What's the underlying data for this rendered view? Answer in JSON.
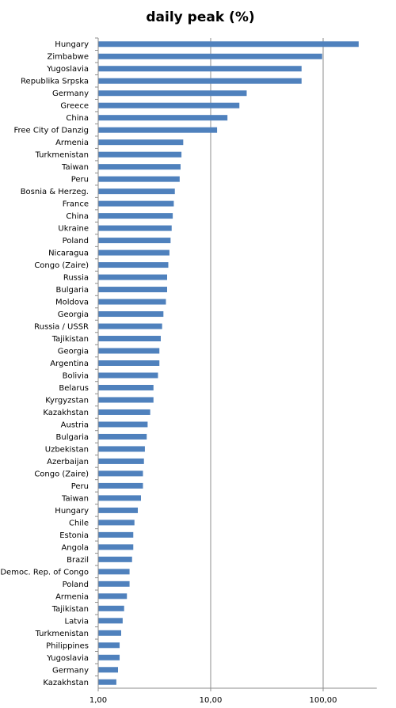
{
  "chart_data": {
    "type": "bar",
    "orientation": "horizontal",
    "title": "daily peak (%)",
    "xscale": "log",
    "xlim": [
      1,
      300
    ],
    "xticks": [
      1,
      10,
      100
    ],
    "xtick_labels": [
      "1,00",
      "10,00",
      "100,00"
    ],
    "grid": true,
    "color": "#4f81bd",
    "categories": [
      "Hungary",
      "Zimbabwe",
      "Yugoslavia",
      "Republika Srpska",
      "Germany",
      "Greece",
      "China",
      "Free City of Danzig",
      "Armenia",
      "Turkmenistan",
      "Taiwan",
      "Peru",
      "Bosnia & Herzeg.",
      "France",
      "China",
      "Ukraine",
      "Poland",
      "Nicaragua",
      "Congo (Zaire)",
      "Russia",
      "Bulgaria",
      "Moldova",
      "Georgia",
      "Russia / USSR",
      "Tajikistan",
      "Georgia",
      "Argentina",
      "Bolivia",
      "Belarus",
      "Kyrgyzstan",
      "Kazakhstan",
      "Austria",
      "Bulgaria",
      "Uzbekistan",
      "Azerbaijan",
      "Congo (Zaire)",
      "Peru",
      "Taiwan",
      "Hungary",
      "Chile",
      "Estonia",
      "Angola",
      "Brazil",
      "Democ. Rep. of Congo",
      "Poland",
      "Armenia",
      "Tajikistan",
      "Latvia",
      "Turkmenistan",
      "Philippines",
      "Yugoslavia",
      "Germany",
      "Kazakhstan"
    ],
    "values": [
      207,
      98,
      64.3,
      64.3,
      20.9,
      18,
      14.1,
      11.4,
      5.7,
      5.5,
      5.4,
      5.3,
      4.8,
      4.7,
      4.6,
      4.5,
      4.4,
      4.3,
      4.2,
      4.1,
      4.1,
      4.0,
      3.8,
      3.7,
      3.6,
      3.5,
      3.5,
      3.4,
      3.1,
      3.1,
      2.9,
      2.75,
      2.7,
      2.6,
      2.55,
      2.5,
      2.5,
      2.4,
      2.25,
      2.1,
      2.05,
      2.05,
      2.0,
      1.9,
      1.9,
      1.8,
      1.7,
      1.65,
      1.6,
      1.55,
      1.55,
      1.5,
      1.45
    ]
  }
}
